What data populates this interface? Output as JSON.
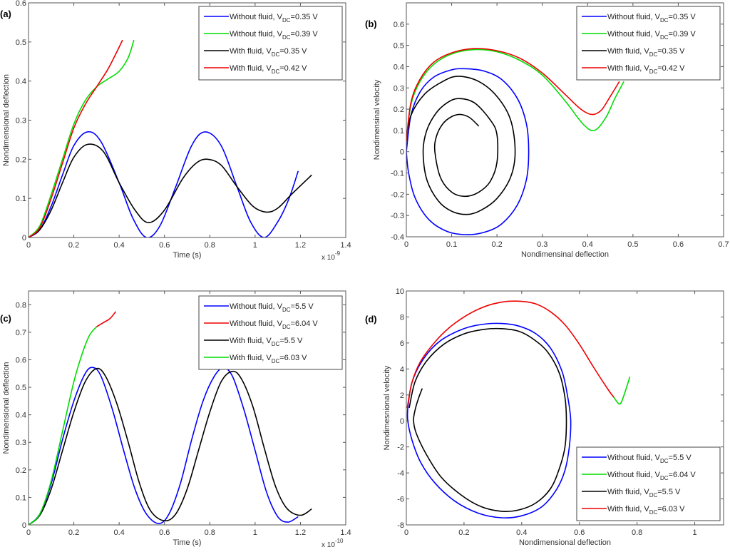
{
  "chart_data": [
    {
      "id": "a",
      "panel_label": "(a)",
      "type": "line",
      "title": "",
      "xlabel": "Time (s)",
      "ylabel": "Nondimensional deflection",
      "x_exponent_label": "x 10",
      "x_exponent": "-9",
      "xlim": [
        0,
        1.4
      ],
      "ylim": [
        0,
        0.6
      ],
      "xticks": [
        0,
        0.2,
        0.4,
        0.6,
        0.8,
        1,
        1.2,
        1.4
      ],
      "xtick_labels": [
        "0",
        "0.2",
        "0.4",
        "0.6",
        "0.8",
        "1",
        "1.2",
        "1.4"
      ],
      "yticks": [
        0,
        0.1,
        0.2,
        0.3,
        0.4,
        0.5,
        0.6
      ],
      "ytick_labels": [
        "0",
        "0.1",
        "0.2",
        "0.3",
        "0.4",
        "0.5",
        "0.6"
      ],
      "grid": false,
      "legend_position": "top-right",
      "series": [
        {
          "name": "Without fluid, V_DC=0.35 V",
          "legend_main": "Without fluid, V",
          "legend_sub": "DC",
          "legend_tail": "=0.35 V",
          "color": "#0000ff",
          "x": [
            0,
            0.05,
            0.1,
            0.15,
            0.2,
            0.26,
            0.32,
            0.4,
            0.46,
            0.52,
            0.58,
            0.65,
            0.72,
            0.78,
            0.85,
            0.92,
            0.98,
            1.04,
            1.1,
            1.15,
            1.19
          ],
          "y": [
            0,
            0.02,
            0.08,
            0.16,
            0.235,
            0.27,
            0.245,
            0.14,
            0.05,
            0,
            0.03,
            0.13,
            0.235,
            0.27,
            0.235,
            0.13,
            0.04,
            0,
            0.04,
            0.1,
            0.17
          ]
        },
        {
          "name": "Without fluid, V_DC=0.39 V",
          "legend_main": "Without fluid, V",
          "legend_sub": "DC",
          "legend_tail": "=0.39 V",
          "color": "#00dd00",
          "x": [
            0,
            0.05,
            0.1,
            0.15,
            0.2,
            0.25,
            0.3,
            0.35,
            0.4,
            0.44,
            0.465
          ],
          "y": [
            0,
            0.03,
            0.11,
            0.2,
            0.29,
            0.35,
            0.385,
            0.405,
            0.425,
            0.46,
            0.505
          ]
        },
        {
          "name": "With fluid, V_DC=0.35 V",
          "legend_main": "With fluid, V",
          "legend_sub": "DC",
          "legend_tail": "=0.35 V",
          "color": "#000000",
          "x": [
            0,
            0.05,
            0.1,
            0.15,
            0.2,
            0.26,
            0.33,
            0.4,
            0.47,
            0.53,
            0.6,
            0.68,
            0.74,
            0.79,
            0.85,
            0.92,
            0.99,
            1.05,
            1.1,
            1.16,
            1.25
          ],
          "y": [
            0,
            0.02,
            0.07,
            0.14,
            0.205,
            0.238,
            0.22,
            0.14,
            0.07,
            0.038,
            0.07,
            0.15,
            0.19,
            0.2,
            0.185,
            0.13,
            0.08,
            0.065,
            0.075,
            0.11,
            0.16
          ]
        },
        {
          "name": "With fluid, V_DC=0.42 V",
          "legend_main": "With fluid, V",
          "legend_sub": "DC",
          "legend_tail": "=0.42 V",
          "color": "#ee0000",
          "x": [
            0,
            0.05,
            0.1,
            0.15,
            0.2,
            0.25,
            0.3,
            0.35,
            0.39,
            0.415
          ],
          "y": [
            0,
            0.025,
            0.1,
            0.19,
            0.28,
            0.34,
            0.385,
            0.43,
            0.475,
            0.505
          ]
        }
      ]
    },
    {
      "id": "b",
      "panel_label": "(b)",
      "type": "line",
      "title": "",
      "xlabel": "Nondimensinal deflection",
      "ylabel": "Nondimensinal velocity",
      "xlim": [
        0,
        0.7
      ],
      "ylim": [
        -0.4,
        0.7
      ],
      "xticks": [
        0,
        0.1,
        0.2,
        0.3,
        0.4,
        0.5,
        0.6,
        0.7
      ],
      "xtick_labels": [
        "0",
        "0.1",
        "0.2",
        "0.3",
        "0.4",
        "0.5",
        "0.6",
        "0.7"
      ],
      "yticks": [
        -0.4,
        -0.3,
        -0.2,
        -0.1,
        0,
        0.1,
        0.2,
        0.3,
        0.4,
        0.5,
        0.6
      ],
      "ytick_labels": [
        "-0.4",
        "-0.3",
        "-0.2",
        "-0.1",
        "0",
        "0.1",
        "0.2",
        "0.3",
        "0.4",
        "0.5",
        "0.6"
      ],
      "grid": false,
      "legend_position": "top-right",
      "series": [
        {
          "name": "Without fluid, V_DC=0.35 V",
          "legend_main": "Without fluid, V",
          "legend_sub": "DC",
          "legend_tail": "=0.35 V",
          "color": "#0000ff",
          "x": [
            0,
            0.01,
            0.03,
            0.06,
            0.1,
            0.13,
            0.17,
            0.21,
            0.245,
            0.265,
            0.27,
            0.265,
            0.245,
            0.21,
            0.17,
            0.13,
            0.09,
            0.05,
            0.02,
            0.005,
            0
          ],
          "y": [
            0,
            0.17,
            0.28,
            0.35,
            0.385,
            0.39,
            0.38,
            0.34,
            0.25,
            0.13,
            0,
            -0.13,
            -0.25,
            -0.34,
            -0.38,
            -0.39,
            -0.375,
            -0.32,
            -0.22,
            -0.1,
            0
          ]
        },
        {
          "name": "Without fluid, V_DC=0.39 V",
          "legend_main": "Without fluid, V",
          "legend_sub": "DC",
          "legend_tail": "=0.39 V",
          "color": "#00dd00",
          "x": [
            0,
            0.01,
            0.03,
            0.06,
            0.1,
            0.15,
            0.2,
            0.25,
            0.3,
            0.35,
            0.39,
            0.415,
            0.44,
            0.46,
            0.48
          ],
          "y": [
            0.05,
            0.22,
            0.33,
            0.41,
            0.46,
            0.48,
            0.47,
            0.43,
            0.36,
            0.24,
            0.13,
            0.1,
            0.16,
            0.25,
            0.33
          ]
        },
        {
          "name": "With fluid, V_DC=0.35 V",
          "legend_main": "With fluid, V",
          "legend_sub": "DC",
          "legend_tail": "=0.35 V",
          "color": "#000000",
          "x": [
            0,
            0.01,
            0.04,
            0.08,
            0.115,
            0.16,
            0.2,
            0.23,
            0.24,
            0.23,
            0.2,
            0.165,
            0.135,
            0.1,
            0.07,
            0.045,
            0.037,
            0.045,
            0.065,
            0.09,
            0.115,
            0.15,
            0.185,
            0.2,
            0.2,
            0.185,
            0.16,
            0.13,
            0.1,
            0.075,
            0.063,
            0.066,
            0.08,
            0.1,
            0.12,
            0.14,
            0.16
          ],
          "y": [
            0.05,
            0.17,
            0.27,
            0.33,
            0.355,
            0.33,
            0.26,
            0.15,
            0,
            -0.12,
            -0.22,
            -0.275,
            -0.295,
            -0.28,
            -0.23,
            -0.13,
            0,
            0.1,
            0.18,
            0.23,
            0.25,
            0.23,
            0.15,
            0.08,
            -0.05,
            -0.14,
            -0.19,
            -0.21,
            -0.19,
            -0.12,
            0,
            0.07,
            0.13,
            0.165,
            0.175,
            0.16,
            0.12
          ]
        },
        {
          "name": "With fluid, V_DC=0.42 V",
          "legend_main": "With fluid, V",
          "legend_sub": "DC",
          "legend_tail": "=0.42 V",
          "color": "#ee0000",
          "x": [
            0,
            0.01,
            0.03,
            0.06,
            0.1,
            0.15,
            0.2,
            0.25,
            0.3,
            0.35,
            0.385,
            0.41,
            0.43,
            0.45,
            0.47
          ],
          "y": [
            0.05,
            0.23,
            0.34,
            0.42,
            0.465,
            0.485,
            0.475,
            0.44,
            0.37,
            0.27,
            0.2,
            0.175,
            0.195,
            0.26,
            0.33
          ]
        }
      ]
    },
    {
      "id": "c",
      "panel_label": "(c)",
      "type": "line",
      "title": "",
      "xlabel": "Time (s)",
      "ylabel": "Nondimensional deflection",
      "x_exponent_label": "x 10",
      "x_exponent": "-10",
      "xlim": [
        0,
        1.4
      ],
      "ylim": [
        0,
        0.85
      ],
      "xticks": [
        0,
        0.2,
        0.4,
        0.6,
        0.8,
        1,
        1.2,
        1.4
      ],
      "xtick_labels": [
        "0",
        "0.2",
        "0.4",
        "0.6",
        "0.8",
        "1",
        "1.2",
        "1.4"
      ],
      "yticks": [
        0,
        0.1,
        0.2,
        0.3,
        0.4,
        0.5,
        0.6,
        0.7,
        0.8
      ],
      "ytick_labels": [
        "0",
        "0.1",
        "0.2",
        "0.3",
        "0.4",
        "0.5",
        "0.6",
        "0.7",
        "0.8"
      ],
      "grid": false,
      "legend_position": "top-right",
      "series": [
        {
          "name": "Without fluid, V_DC=5.5 V",
          "legend_main": "Without fluid, V",
          "legend_sub": "DC",
          "legend_tail": "=5.5 V",
          "color": "#0000ff",
          "x": [
            0,
            0.05,
            0.1,
            0.15,
            0.2,
            0.25,
            0.285,
            0.32,
            0.37,
            0.42,
            0.47,
            0.52,
            0.575,
            0.62,
            0.67,
            0.72,
            0.77,
            0.82,
            0.86,
            0.9,
            0.95,
            1.0,
            1.05,
            1.1,
            1.145,
            1.19
          ],
          "y": [
            0,
            0.04,
            0.15,
            0.31,
            0.45,
            0.55,
            0.572,
            0.54,
            0.42,
            0.27,
            0.13,
            0.04,
            0.005,
            0.04,
            0.15,
            0.31,
            0.45,
            0.54,
            0.57,
            0.54,
            0.42,
            0.27,
            0.12,
            0.03,
            0.01,
            0.03
          ]
        },
        {
          "name": "Without fluid, V_DC=6.04 V",
          "legend_main": "Without fluid, V",
          "legend_sub": "DC",
          "legend_tail": "=6.04 V",
          "color": "#ee0000",
          "x": [
            0.3,
            0.33,
            0.36,
            0.385
          ],
          "y": [
            0.72,
            0.735,
            0.75,
            0.775
          ]
        },
        {
          "name": "With fluid, V_DC=5.5 V",
          "legend_main": "With fluid, V",
          "legend_sub": "DC",
          "legend_tail": "=5.5 V",
          "color": "#000000",
          "x": [
            0,
            0.05,
            0.1,
            0.15,
            0.2,
            0.25,
            0.3,
            0.34,
            0.39,
            0.44,
            0.49,
            0.54,
            0.6,
            0.65,
            0.7,
            0.75,
            0.8,
            0.85,
            0.9,
            0.94,
            0.99,
            1.04,
            1.09,
            1.14,
            1.2,
            1.25
          ],
          "y": [
            0,
            0.035,
            0.13,
            0.27,
            0.41,
            0.52,
            0.568,
            0.54,
            0.44,
            0.3,
            0.15,
            0.05,
            0.015,
            0.04,
            0.13,
            0.27,
            0.41,
            0.52,
            0.558,
            0.53,
            0.43,
            0.28,
            0.14,
            0.06,
            0.035,
            0.058
          ]
        },
        {
          "name": "With fluid, V_DC=6.03 V",
          "legend_main": "With fluid, V",
          "legend_sub": "DC",
          "legend_tail": "=6.03 V",
          "color": "#00dd00",
          "x": [
            0,
            0.05,
            0.1,
            0.15,
            0.2,
            0.24,
            0.27,
            0.3
          ],
          "y": [
            0,
            0.04,
            0.16,
            0.34,
            0.52,
            0.63,
            0.69,
            0.72
          ]
        }
      ]
    },
    {
      "id": "d",
      "panel_label": "(d)",
      "type": "line",
      "title": "",
      "xlabel": "Nondimensional deflection",
      "ylabel": "Nondimesnional velocity",
      "xlim": [
        0,
        1.1
      ],
      "ylim": [
        -8,
        10
      ],
      "xticks": [
        0,
        0.2,
        0.4,
        0.6,
        0.8,
        1
      ],
      "xtick_labels": [
        "0",
        "0.2",
        "0.4",
        "0.6",
        "0.8",
        "1"
      ],
      "yticks": [
        -8,
        -6,
        -4,
        -2,
        0,
        2,
        4,
        6,
        8,
        10
      ],
      "ytick_labels": [
        "-8",
        "-6",
        "-4",
        "-2",
        "0",
        "2",
        "4",
        "6",
        "8",
        "10"
      ],
      "grid": false,
      "legend_position": "bottom-right",
      "series": [
        {
          "name": "Without fluid, V_DC=5.5 V",
          "legend_main": "Without fluid, V",
          "legend_sub": "DC",
          "legend_tail": "=5.5 V",
          "color": "#0000ff",
          "x": [
            0.005,
            0.02,
            0.06,
            0.12,
            0.2,
            0.27,
            0.33,
            0.39,
            0.45,
            0.5,
            0.54,
            0.56,
            0.57,
            0.565,
            0.55,
            0.52,
            0.47,
            0.4,
            0.33,
            0.25,
            0.17,
            0.1,
            0.05,
            0.02,
            0.005,
            0.005
          ],
          "y": [
            1,
            3,
            4.8,
            6.2,
            7.1,
            7.45,
            7.5,
            7.3,
            6.7,
            5.6,
            3.8,
            1.8,
            0,
            -2,
            -3.8,
            -5.3,
            -6.6,
            -7.3,
            -7.45,
            -7.1,
            -6.2,
            -4.8,
            -3.2,
            -1.5,
            0,
            1
          ]
        },
        {
          "name": "Without fluid, V_DC=6.04 V",
          "legend_main": "Without fluid, V",
          "legend_sub": "DC",
          "legend_tail": "=6.04 V",
          "color": "#00dd00",
          "x": [
            0.72,
            0.74,
            0.755,
            0.775
          ],
          "y": [
            1.8,
            1.3,
            2.0,
            3.4
          ]
        },
        {
          "name": "With fluid, V_DC=5.5 V",
          "legend_main": "With fluid, V",
          "legend_sub": "DC",
          "legend_tail": "=5.5 V",
          "color": "#000000",
          "x": [
            0.01,
            0.03,
            0.07,
            0.13,
            0.2,
            0.27,
            0.33,
            0.39,
            0.44,
            0.49,
            0.53,
            0.55,
            0.555,
            0.55,
            0.53,
            0.5,
            0.45,
            0.39,
            0.33,
            0.26,
            0.19,
            0.12,
            0.07,
            0.035,
            0.025,
            0.03,
            0.04,
            0.055
          ],
          "y": [
            1,
            3,
            4.6,
            5.9,
            6.7,
            7.05,
            7.1,
            6.9,
            6.3,
            5.3,
            3.7,
            1.8,
            0,
            -2,
            -3.7,
            -5.2,
            -6.3,
            -6.85,
            -6.95,
            -6.6,
            -5.7,
            -4.3,
            -2.6,
            -1,
            0,
            0.8,
            1.6,
            2.5
          ]
        },
        {
          "name": "With fluid, V_DC=6.03 V",
          "legend_main": "With fluid, V",
          "legend_sub": "DC",
          "legend_tail": "=6.03 V",
          "color": "#ee0000",
          "x": [
            0.003,
            0.02,
            0.05,
            0.1,
            0.15,
            0.2,
            0.25,
            0.3,
            0.35,
            0.4,
            0.45,
            0.5,
            0.55,
            0.6,
            0.65,
            0.7,
            0.72
          ],
          "y": [
            1,
            3,
            4.6,
            6.1,
            7.2,
            8.0,
            8.6,
            9.0,
            9.2,
            9.2,
            9.0,
            8.4,
            7.4,
            5.9,
            4.1,
            2.4,
            1.8
          ]
        }
      ]
    }
  ]
}
